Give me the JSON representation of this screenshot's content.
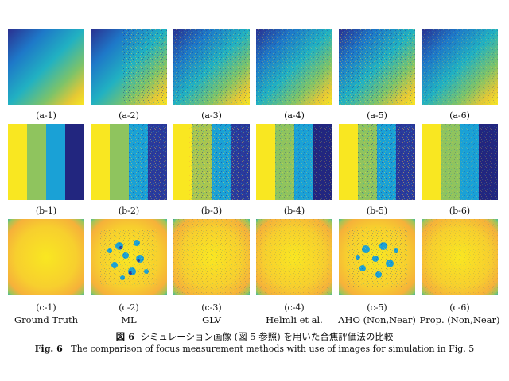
{
  "figure": {
    "row_a_labels": [
      "(a-1)",
      "(a-2)",
      "(a-3)",
      "(a-4)",
      "(a-5)",
      "(a-6)"
    ],
    "row_b_labels": [
      "(b-1)",
      "(b-2)",
      "(b-3)",
      "(b-4)",
      "(b-5)",
      "(b-6)"
    ],
    "row_c_labels": [
      "(c-1)",
      "(c-2)",
      "(c-3)",
      "(c-4)",
      "(c-5)",
      "(c-6)"
    ],
    "method_labels": [
      "Ground Truth",
      "ML",
      "GLV",
      "Helmli et al.",
      "AHO (Non,Near)",
      "Prop. (Non,Near)"
    ],
    "colors": {
      "yellow": "#f9e721",
      "green": "#8fc45e",
      "cyan": "#1aa1d6",
      "blue": "#2a3a9c",
      "navy": "#22267f",
      "orange": "#f6b13a"
    }
  },
  "caption": {
    "jp_number": "図 6",
    "jp_text": "シミュレーション画像 (図 5 参照) を用いた合焦評価法の比較",
    "en_number": "Fig. 6",
    "en_text": "The comparison of focus measurement methods with use of images for simulation in Fig. 5"
  }
}
